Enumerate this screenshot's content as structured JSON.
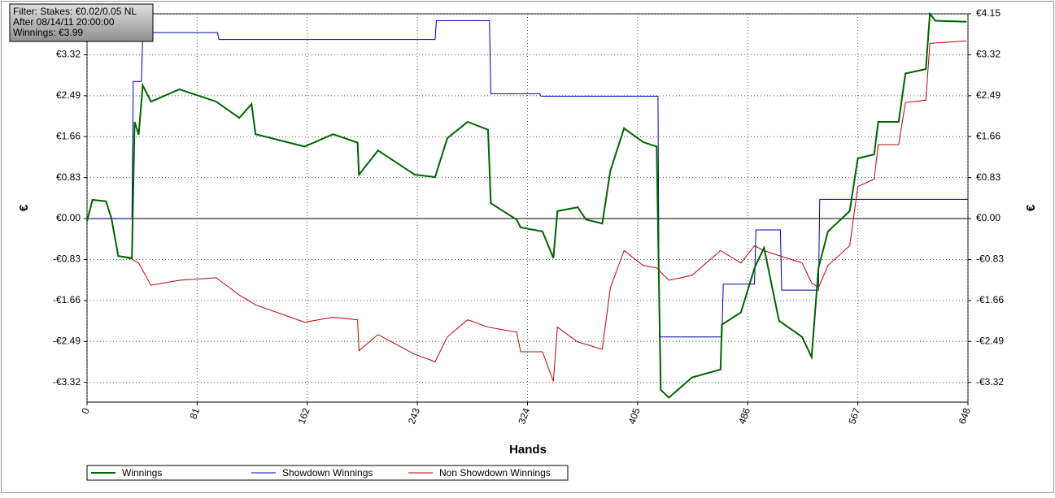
{
  "chart_data": {
    "type": "line",
    "annotations": [
      "Filter: Stakes: €0.02/0.05 NL",
      "After 08/14/11 20:00:00",
      "Winnings: €3.99"
    ],
    "x_label": "Hands",
    "y_label": "€",
    "y2_label": "€",
    "xlim": [
      0,
      648
    ],
    "xticks": [
      0,
      81,
      162,
      243,
      324,
      405,
      486,
      567,
      648
    ],
    "ylim": [
      -3.72,
      4.15
    ],
    "yticks": [
      {
        "value": -3.32,
        "label": "-€3.32"
      },
      {
        "value": -2.49,
        "label": "-€2.49"
      },
      {
        "value": -1.66,
        "label": "-€1.66"
      },
      {
        "value": -0.83,
        "label": "-€0.83"
      },
      {
        "value": 0,
        "label": "€0.00"
      },
      {
        "value": 0.83,
        "label": "€0.83"
      },
      {
        "value": 1.66,
        "label": "€1.66"
      },
      {
        "value": 2.49,
        "label": "€2.49"
      },
      {
        "value": 3.32,
        "label": "€3.32"
      },
      {
        "value": 4.15,
        "label": "€4.15"
      }
    ],
    "grid": true,
    "legend": "bottom",
    "series": [
      {
        "name": "Winnings",
        "color": "#006400",
        "x": [
          0,
          4,
          14,
          18,
          23,
          33,
          34,
          35,
          38,
          41,
          47,
          68,
          95,
          112,
          121,
          124,
          160,
          181,
          199,
          200,
          214,
          241,
          256,
          265,
          280,
          295,
          297,
          316,
          319,
          335,
          343,
          346,
          361,
          367,
          379,
          385,
          395,
          409,
          419,
          422,
          428,
          445,
          466,
          467,
          481,
          491,
          498,
          509,
          526,
          533,
          538,
          545,
          561,
          567,
          579,
          582,
          597,
          602,
          617,
          620,
          624,
          647
        ],
        "values": [
          -0.05,
          0.38,
          0.35,
          0,
          -0.76,
          -0.8,
          0.56,
          1.96,
          1.7,
          2.7,
          2.37,
          2.62,
          2.37,
          2.04,
          2.32,
          1.71,
          1.46,
          1.71,
          1.54,
          0.89,
          1.38,
          0.89,
          0.84,
          1.63,
          1.96,
          1.8,
          0.31,
          -0.02,
          -0.18,
          -0.26,
          -0.8,
          0.15,
          0.23,
          -0.02,
          -0.1,
          0.97,
          1.83,
          1.55,
          1.46,
          -3.47,
          -3.63,
          -3.22,
          -3.06,
          -2.15,
          -1.9,
          -1.0,
          -0.59,
          -2.07,
          -2.4,
          -2.81,
          -1.0,
          -0.26,
          0.15,
          1.22,
          1.3,
          1.96,
          1.96,
          2.94,
          3.03,
          4.15,
          4.01,
          3.99
        ]
      },
      {
        "name": "Showdown Winnings",
        "color": "#0000aa",
        "x": [
          0,
          33,
          34,
          40,
          41,
          96,
          97,
          256,
          257,
          296,
          297,
          333,
          334,
          420,
          421,
          467,
          468,
          491,
          492,
          510,
          511,
          538,
          539,
          648
        ],
        "values": [
          0,
          0,
          2.78,
          2.78,
          3.77,
          3.77,
          3.63,
          3.63,
          4.01,
          4.01,
          2.53,
          2.53,
          2.48,
          2.48,
          -2.4,
          -2.4,
          -1.33,
          -1.33,
          -0.23,
          -0.23,
          -1.45,
          -1.45,
          0.39,
          0.39
        ]
      },
      {
        "name": "Non Showdown Winnings",
        "color": "#c00000",
        "x": [
          0,
          4,
          14,
          18,
          23,
          33,
          38,
          47,
          68,
          95,
          112,
          124,
          160,
          181,
          199,
          200,
          214,
          241,
          256,
          265,
          280,
          295,
          316,
          319,
          335,
          343,
          346,
          361,
          379,
          385,
          395,
          409,
          419,
          428,
          445,
          466,
          481,
          491,
          498,
          509,
          526,
          533,
          538,
          545,
          561,
          567,
          579,
          582,
          597,
          602,
          617,
          620,
          647
        ],
        "values": [
          -0.05,
          0.38,
          0.35,
          0,
          -0.76,
          -0.82,
          -0.9,
          -1.35,
          -1.25,
          -1.2,
          -1.55,
          -1.75,
          -2.1,
          -2.0,
          -2.05,
          -2.68,
          -2.35,
          -2.75,
          -2.9,
          -2.4,
          -2.05,
          -2.2,
          -2.3,
          -2.7,
          -2.7,
          -3.3,
          -2.2,
          -2.5,
          -2.65,
          -1.4,
          -0.65,
          -0.95,
          -1.0,
          -1.25,
          -1.15,
          -0.65,
          -0.9,
          -0.55,
          -0.65,
          -0.75,
          -0.9,
          -1.3,
          -1.4,
          -0.95,
          -0.55,
          0.65,
          0.8,
          1.5,
          1.5,
          2.35,
          2.4,
          3.55,
          3.6
        ]
      }
    ]
  }
}
